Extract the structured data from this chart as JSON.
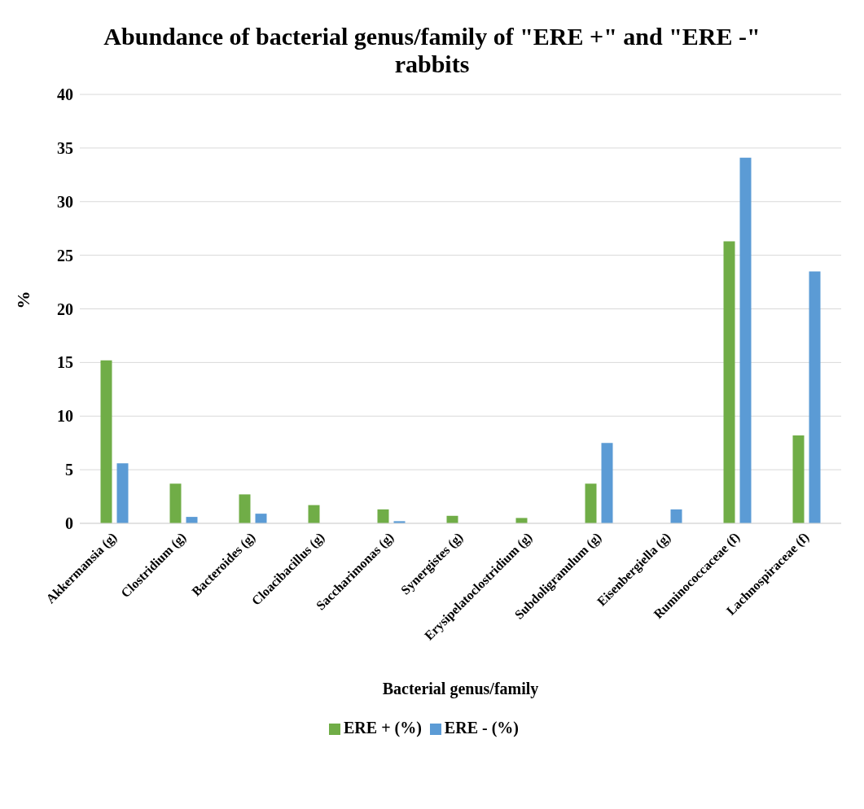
{
  "chart_data": {
    "type": "bar",
    "title": "Abundance of bacterial genus/family of \"ERE +\" and \"ERE -\" rabbits",
    "xlabel": "Bacterial genus/family",
    "ylabel": "%",
    "categories": [
      "Akkermansia (g)",
      "Clostridium (g)",
      "Bacteroides (g)",
      "Cloacibacillus (g)",
      "Saccharimonas (g)",
      "Synergistes (g)",
      "Erysipelatoclostridium (g)",
      "Subdoligranulum (g)",
      "Eisenbergiella (g)",
      "Ruminococcaceae (f)",
      "Lachnospiraceae (f)"
    ],
    "series": [
      {
        "name": "ERE + (%)",
        "color": "#70ad47",
        "values": [
          15.2,
          3.7,
          2.7,
          1.7,
          1.3,
          0.7,
          0.5,
          3.7,
          0,
          26.3,
          8.2
        ]
      },
      {
        "name": "ERE - (%)",
        "color": "#5b9bd5",
        "values": [
          5.6,
          0.6,
          0.9,
          0,
          0.2,
          0,
          0,
          7.5,
          1.3,
          34.1,
          23.5
        ]
      }
    ],
    "ylim": [
      0,
      40
    ],
    "yticks": [
      0,
      5,
      10,
      15,
      20,
      25,
      30,
      35,
      40
    ],
    "grid": "y",
    "legend": "bottom"
  }
}
